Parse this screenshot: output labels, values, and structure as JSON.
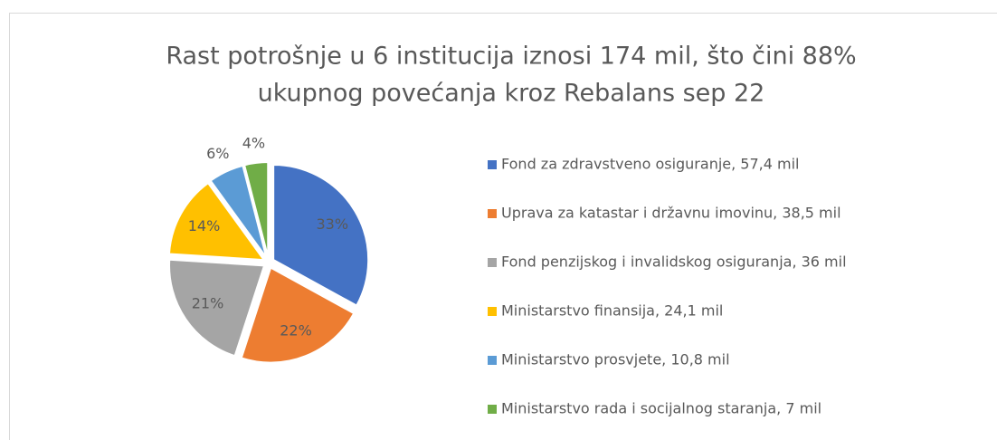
{
  "chart_data": {
    "type": "pie",
    "title": [
      "Rast potrošnje u 6 institucija iznosi 174 mil, što čini 88%",
      "ukupnog povećanja kroz Rebalans sep 22"
    ],
    "categories": [
      "Fond za zdravstveno osiguranje, 57,4 mil",
      "Uprava za katastar i državnu imovinu, 38,5 mil",
      "Fond penzijskog i invalidskog osiguranja, 36 mil",
      "Ministarstvo finansija, 24,1 mil",
      "Ministarstvo prosvjete, 10,8 mil",
      "Ministarstvo rada i socijalnog staranja, 7 mil"
    ],
    "values": [
      33,
      22,
      21,
      14,
      6,
      4
    ],
    "value_labels": [
      "33%",
      "22%",
      "21%",
      "14%",
      "6%",
      "4%"
    ],
    "colors": [
      "#4472c4",
      "#ed7d31",
      "#a5a5a5",
      "#ffc000",
      "#5b9bd5",
      "#70ad47"
    ],
    "legend": "right"
  }
}
